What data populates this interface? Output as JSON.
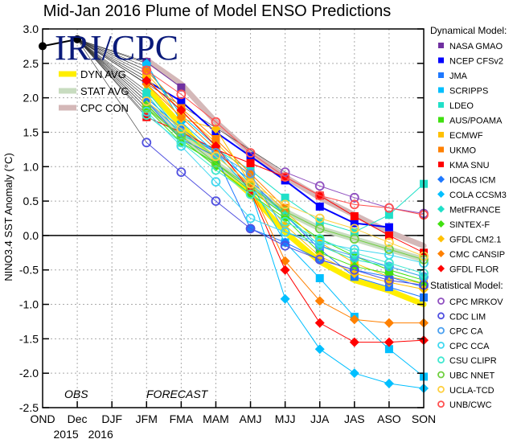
{
  "chart_data": {
    "type": "line",
    "title": "Mid-Jan 2016 Plume of Model ENSO Predictions",
    "xlabel": "",
    "ylabel": "NINO3.4 SST Anomaly (°C)",
    "ylim": [
      -2.5,
      3.0
    ],
    "yticks": [
      "3.0",
      "2.5",
      "2.0",
      "1.5",
      "1.0",
      "0.5",
      "0.0",
      "-0.5",
      "-1.0",
      "-1.5",
      "-2.0",
      "-2.5"
    ],
    "ytick_values": [
      3.0,
      2.5,
      2.0,
      1.5,
      1.0,
      0.5,
      0.0,
      -0.5,
      -1.0,
      -1.5,
      -2.0,
      -2.5
    ],
    "categories": [
      "OND",
      "Dec",
      "DJF",
      "JFM",
      "FMA",
      "MAM",
      "AMJ",
      "MJJ",
      "JJA",
      "JAS",
      "ASO",
      "SON"
    ],
    "year_labels": [
      {
        "label": "2015",
        "at": "Dec"
      },
      {
        "label": "2016",
        "at": "DJF"
      }
    ],
    "grid": true,
    "annotations": {
      "obs": "OBS",
      "forecast": "FORECAST",
      "logo": "IRI/CPC"
    },
    "observed": {
      "name": "Observed",
      "color": "#000000",
      "values": [
        2.75,
        2.85,
        null,
        null,
        null,
        null,
        null,
        null,
        null,
        null,
        null,
        null
      ]
    },
    "inset_legend": [
      {
        "name": "DYN AVG",
        "color": "#ffee00"
      },
      {
        "name": "STAT AVG",
        "color": "#c8dcc0"
      },
      {
        "name": "CPC CON",
        "color": "#d4b8b8"
      }
    ],
    "averages": [
      {
        "name": "DYN AVG",
        "color": "#ffee00",
        "values": [
          null,
          null,
          null,
          2.15,
          1.6,
          1.05,
          0.6,
          0.05,
          -0.38,
          -0.65,
          -0.8,
          -1.0
        ]
      },
      {
        "name": "STAT AVG",
        "color": "#c8dcc0",
        "values": [
          null,
          null,
          null,
          1.9,
          1.45,
          1.05,
          0.7,
          0.35,
          0.1,
          -0.05,
          -0.2,
          -0.35
        ]
      },
      {
        "name": "CPC CON",
        "color": "#d4b8b8",
        "values": [
          null,
          null,
          null,
          2.55,
          2.2,
          1.65,
          1.2,
          0.85,
          0.55,
          0.3,
          0.05,
          -0.15
        ]
      }
    ],
    "legend_dynamical_title": "Dynamical Model:",
    "legend_statistical_title": "Statistical Model:",
    "series": [
      {
        "name": "NASA GMAO",
        "group": "dynamical",
        "marker": "square",
        "color": "#7030a0",
        "values": [
          null,
          null,
          null,
          2.52,
          2.15,
          null,
          null,
          null,
          null,
          null,
          null,
          null
        ]
      },
      {
        "name": "NCEP CFSv2",
        "group": "dynamical",
        "marker": "square",
        "color": "#0000ff",
        "values": [
          null,
          null,
          null,
          2.25,
          1.95,
          1.5,
          1.15,
          0.8,
          0.42,
          0.18,
          0.12,
          null
        ]
      },
      {
        "name": "JMA",
        "group": "dynamical",
        "marker": "square",
        "color": "#1e78ff",
        "values": [
          null,
          null,
          null,
          2.0,
          1.55,
          1.2,
          0.8,
          0.3,
          -0.2,
          -0.6,
          -0.75,
          -0.9
        ]
      },
      {
        "name": "SCRIPPS",
        "group": "dynamical",
        "marker": "square",
        "color": "#00bfff",
        "values": [
          null,
          null,
          null,
          2.45,
          1.75,
          1.3,
          0.75,
          -0.1,
          -0.62,
          -1.18,
          -1.65,
          -2.05
        ]
      },
      {
        "name": "LDEO",
        "group": "dynamical",
        "marker": "square",
        "color": "#20e0c8",
        "values": [
          null,
          null,
          null,
          2.05,
          1.45,
          1.25,
          0.95,
          0.55,
          0.2,
          0.05,
          0.3,
          0.75
        ]
      },
      {
        "name": "AUS/POAMA",
        "group": "dynamical",
        "marker": "square",
        "color": "#40e010",
        "values": [
          null,
          null,
          null,
          1.85,
          1.35,
          1.05,
          0.65,
          0.3,
          -0.05,
          -0.3,
          -0.5,
          -0.65
        ]
      },
      {
        "name": "ECMWF",
        "group": "dynamical",
        "marker": "square",
        "color": "#ffc000",
        "values": [
          null,
          null,
          null,
          2.35,
          1.8,
          1.35,
          0.85,
          0.35,
          -0.1,
          -0.4,
          -0.6,
          -0.7
        ]
      },
      {
        "name": "UKMO",
        "group": "dynamical",
        "marker": "square",
        "color": "#ff8000",
        "values": [
          null,
          null,
          null,
          2.4,
          1.85,
          1.4,
          0.9,
          0.4,
          null,
          null,
          null,
          null
        ]
      },
      {
        "name": "KMA SNU",
        "group": "dynamical",
        "marker": "square",
        "color": "#ff0000",
        "values": [
          null,
          null,
          null,
          1.72,
          1.5,
          1.25,
          1.05,
          0.85,
          0.58,
          0.28,
          0.0,
          -0.25
        ]
      },
      {
        "name": "IOCAS ICM",
        "group": "dynamical",
        "marker": "diamond",
        "color": "#1e78ff",
        "values": [
          null,
          null,
          null,
          1.95,
          1.4,
          1.15,
          0.1,
          -0.1,
          -0.35,
          -0.5,
          -0.6,
          -0.75
        ]
      },
      {
        "name": "COLA CCSM3",
        "group": "dynamical",
        "marker": "diamond",
        "color": "#00bfff",
        "values": [
          null,
          null,
          null,
          2.5,
          1.65,
          1.2,
          0.65,
          -0.92,
          -1.65,
          -2.0,
          -2.15,
          -2.22
        ]
      },
      {
        "name": "MetFRANCE",
        "group": "dynamical",
        "marker": "diamond",
        "color": "#20e0c8",
        "values": [
          null,
          null,
          null,
          2.1,
          1.5,
          1.15,
          0.75,
          0.3,
          -0.15,
          -0.35,
          -0.45,
          -0.6
        ]
      },
      {
        "name": "SINTEX-F",
        "group": "dynamical",
        "marker": "diamond",
        "color": "#40e010",
        "values": [
          null,
          null,
          null,
          1.9,
          1.4,
          1.0,
          0.6,
          0.25,
          -0.25,
          -0.45,
          -0.55,
          -0.7
        ]
      },
      {
        "name": "GFDL CM2.1",
        "group": "dynamical",
        "marker": "diamond",
        "color": "#ffc000",
        "values": [
          null,
          null,
          null,
          2.3,
          1.7,
          1.55,
          0.75,
          0.15,
          -0.3,
          -0.55,
          -0.68,
          -0.78
        ]
      },
      {
        "name": "CMC CANSIP",
        "group": "dynamical",
        "marker": "diamond",
        "color": "#ff8000",
        "values": [
          null,
          null,
          null,
          2.2,
          1.72,
          1.25,
          0.7,
          -0.37,
          -0.95,
          -1.22,
          -1.27,
          -1.27
        ]
      },
      {
        "name": "GFDL FLOR",
        "group": "dynamical",
        "marker": "diamond",
        "color": "#ff0000",
        "values": [
          null,
          null,
          null,
          2.25,
          1.82,
          1.3,
          0.65,
          -0.5,
          -1.27,
          -1.55,
          -1.55,
          -1.52
        ]
      },
      {
        "name": "CPC MRKOV",
        "group": "statistical",
        "marker": "circle",
        "color": "#9050c0",
        "values": [
          null,
          null,
          null,
          null,
          null,
          null,
          null,
          0.92,
          0.72,
          0.55,
          0.4,
          0.32
        ]
      },
      {
        "name": "CDC LIM",
        "group": "statistical",
        "marker": "circle",
        "color": "#5050e0",
        "values": [
          null,
          null,
          null,
          1.35,
          0.92,
          0.5,
          0.1,
          -0.15,
          -0.35,
          -0.5,
          -0.65,
          -0.72
        ]
      },
      {
        "name": "CPC CA",
        "group": "statistical",
        "marker": "circle",
        "color": "#4aa0f0",
        "values": [
          null,
          null,
          null,
          1.95,
          1.5,
          1.2,
          0.9,
          0.05,
          -0.15,
          -0.3,
          -0.45,
          -0.6
        ]
      },
      {
        "name": "CPC CCA",
        "group": "statistical",
        "marker": "circle",
        "color": "#40d8f0",
        "values": [
          null,
          null,
          null,
          1.8,
          1.3,
          0.78,
          0.25,
          0.05,
          -0.1,
          -0.2,
          -0.28,
          -0.4
        ]
      },
      {
        "name": "CSU CLIPR",
        "group": "statistical",
        "marker": "circle",
        "color": "#40e8d0",
        "values": [
          null,
          null,
          null,
          1.75,
          1.35,
          0.95,
          0.6,
          0.2,
          -0.05,
          -0.25,
          -0.4,
          -0.55
        ]
      },
      {
        "name": "UBC NNET",
        "group": "statistical",
        "marker": "circle",
        "color": "#70d040",
        "values": [
          null,
          null,
          null,
          1.85,
          1.45,
          1.05,
          0.7,
          0.35,
          0.1,
          -0.05,
          -0.2,
          -0.35
        ]
      },
      {
        "name": "UCLA-TCD",
        "group": "statistical",
        "marker": "circle",
        "color": "#ffd040",
        "values": [
          null,
          null,
          null,
          1.95,
          1.55,
          1.15,
          0.75,
          0.45,
          0.25,
          0.1,
          -0.1,
          -0.3
        ]
      },
      {
        "name": "UNB/CWC",
        "group": "statistical",
        "marker": "circle",
        "color": "#ff5050",
        "values": [
          null,
          null,
          null,
          2.4,
          2.05,
          1.65,
          1.2,
          0.85,
          0.58,
          0.45,
          0.4,
          0.3
        ]
      }
    ]
  }
}
